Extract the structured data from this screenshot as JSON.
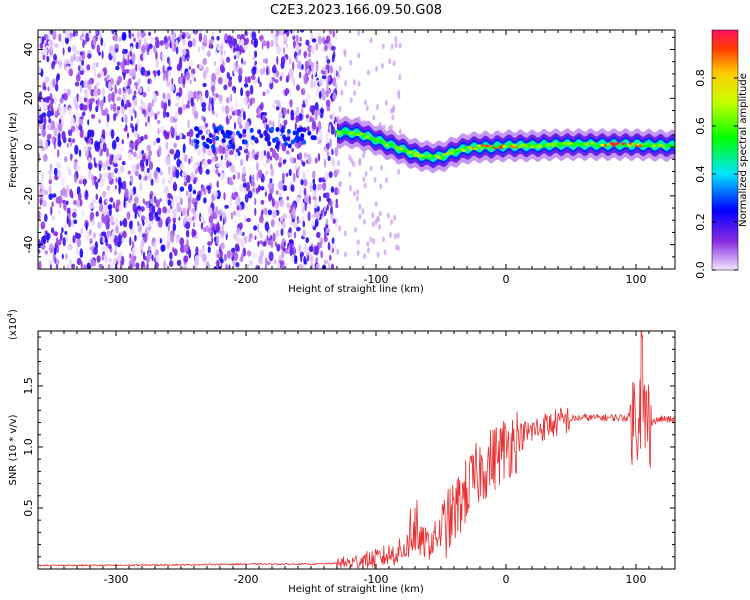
{
  "title": "C2E3.2023.166.09.50.G08",
  "chart_data": [
    {
      "type": "heatmap",
      "xlabel": "Height of straight line (km)",
      "ylabel": "Frequency (Hz)",
      "xlim": [
        -360,
        130
      ],
      "ylim": [
        -50,
        48
      ],
      "xticks": [
        -300,
        -200,
        -100,
        0,
        100
      ],
      "yticks": [
        -40,
        -20,
        0,
        20,
        40
      ],
      "noise_region_x": [
        -360,
        -130
      ],
      "ridge": {
        "x": [
          -130,
          -120,
          -110,
          -100,
          -90,
          -80,
          -70,
          -60,
          -50,
          -40,
          -30,
          -20,
          -10,
          0,
          20,
          40,
          60,
          80,
          100,
          130
        ],
        "y": [
          6,
          6,
          5,
          3,
          1,
          -1,
          -3,
          -4,
          -4,
          -2,
          -0.5,
          0,
          0,
          0.5,
          0.5,
          1,
          1,
          1,
          1,
          0.5
        ]
      },
      "colorbar": {
        "label": "Normalized spectral amplitude",
        "range": [
          0,
          1
        ],
        "ticks": [
          "0.0",
          "0.2",
          "0.4",
          "0.6",
          "0.8"
        ]
      }
    },
    {
      "type": "line",
      "xlabel": "Height of straight line (km)",
      "ylabel": "SNR (10 * v/v)",
      "multiplier_label": "(x10",
      "multiplier_exp": "4",
      "xlim": [
        -360,
        130
      ],
      "ylim": [
        0,
        1.95
      ],
      "xticks": [
        -300,
        -200,
        -100,
        0,
        100
      ],
      "yticks": [
        "0.5",
        "1.0",
        "1.5"
      ],
      "series": [
        {
          "color": "#e83030",
          "x": [
            -360,
            -300,
            -250,
            -200,
            -150,
            -120,
            -100,
            -80,
            -70,
            -60,
            -50,
            -40,
            -30,
            -20,
            -10,
            0,
            10,
            20,
            30,
            40,
            50,
            60,
            70,
            80,
            90,
            100,
            105,
            110,
            120,
            130
          ],
          "y": [
            0.03,
            0.03,
            0.035,
            0.04,
            0.04,
            0.05,
            0.08,
            0.15,
            0.25,
            0.2,
            0.3,
            0.45,
            0.65,
            0.8,
            0.9,
            1.0,
            1.08,
            1.13,
            1.17,
            1.2,
            1.23,
            1.24,
            1.24,
            1.24,
            1.24,
            1.25,
            1.3,
            1.2,
            1.23,
            1.22
          ]
        }
      ]
    }
  ]
}
